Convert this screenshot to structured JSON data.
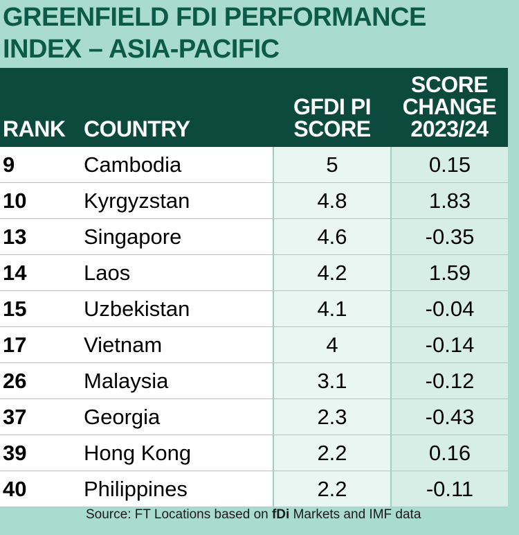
{
  "chart_data": {
    "type": "table",
    "title_lines": [
      "GREENFIELD FDI PERFORMANCE",
      "INDEX – ASIA-PACIFIC"
    ],
    "columns": {
      "rank": "RANK",
      "country": "COUNTRY",
      "score_lines": [
        "GFDI PI",
        "SCORE"
      ],
      "change_lines": [
        "SCORE",
        "CHANGE",
        "2023/24"
      ]
    },
    "rows": [
      {
        "rank": "9",
        "country": "Cambodia",
        "score": "5",
        "change": "0.15"
      },
      {
        "rank": "10",
        "country": "Kyrgyzstan",
        "score": "4.8",
        "change": "1.83"
      },
      {
        "rank": "13",
        "country": "Singapore",
        "score": "4.6",
        "change": "-0.35"
      },
      {
        "rank": "14",
        "country": "Laos",
        "score": "4.2",
        "change": "1.59"
      },
      {
        "rank": "15",
        "country": "Uzbekistan",
        "score": "4.1",
        "change": "-0.04"
      },
      {
        "rank": "17",
        "country": "Vietnam",
        "score": "4",
        "change": "-0.14"
      },
      {
        "rank": "26",
        "country": "Malaysia",
        "score": "3.1",
        "change": "-0.12"
      },
      {
        "rank": "37",
        "country": "Georgia",
        "score": "2.3",
        "change": "-0.43"
      },
      {
        "rank": "39",
        "country": "Hong Kong",
        "score": "2.2",
        "change": "0.16"
      },
      {
        "rank": "40",
        "country": "Philippines",
        "score": "2.2",
        "change": "-0.11"
      }
    ],
    "source": {
      "prefix": "Source: FT Locations based on ",
      "bold": "fDi",
      "suffix": " Markets and IMF data"
    }
  },
  "colors": {
    "background": "#a9dccf",
    "header": "#0b4a3c",
    "title": "#0c5a48"
  }
}
